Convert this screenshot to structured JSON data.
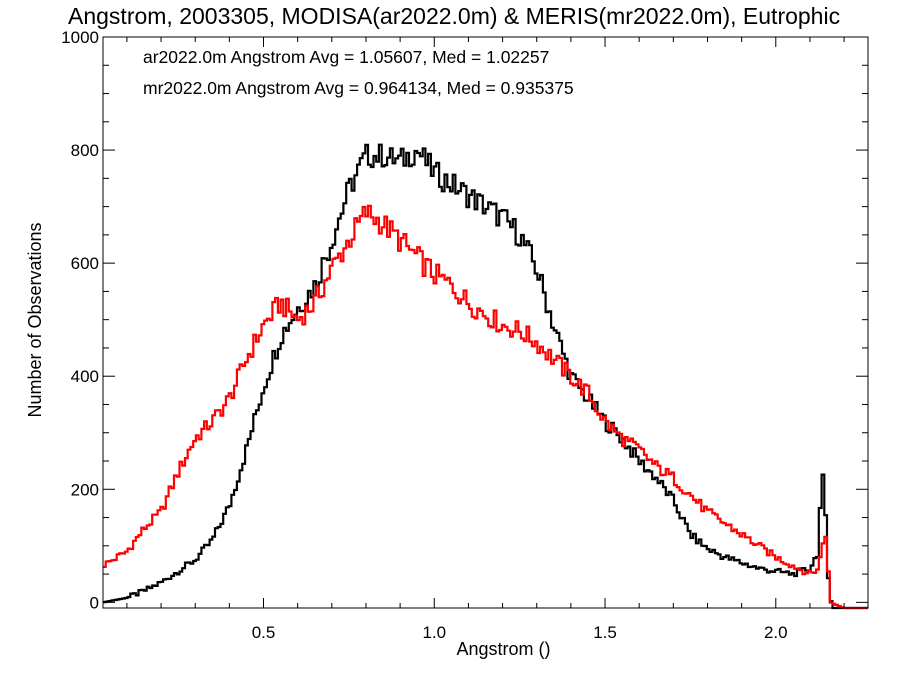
{
  "chart_data": {
    "type": "line",
    "title": "Angstrom, 2003305, MODISA(ar2022.0m) & MERIS(mr2022.0m), Eutrophic",
    "xlabel": "Angstrom ()",
    "ylabel": "Number of Observations",
    "xlim": [
      0.03,
      2.27
    ],
    "ylim": [
      -10,
      1000
    ],
    "xticks": [
      0.5,
      1.0,
      1.5,
      2.0
    ],
    "xtick_labels": [
      "0.5",
      "1.0",
      "1.5",
      "2.0"
    ],
    "yticks": [
      0,
      200,
      400,
      600,
      800,
      1000
    ],
    "ytick_labels": [
      "0",
      "200",
      "400",
      "600",
      "800",
      "1000"
    ],
    "grid": false,
    "legend_position": "top-left",
    "series": [
      {
        "name": "ar2022.0m",
        "color": "#000000",
        "annotation": "ar2022.0m Angstrom Avg = 1.05607, Med = 1.02257",
        "x": [
          0.03,
          0.1,
          0.15,
          0.2,
          0.25,
          0.3,
          0.35,
          0.4,
          0.45,
          0.5,
          0.55,
          0.6,
          0.65,
          0.7,
          0.75,
          0.8,
          0.85,
          0.9,
          0.95,
          1.0,
          1.05,
          1.1,
          1.15,
          1.2,
          1.25,
          1.3,
          1.35,
          1.4,
          1.45,
          1.5,
          1.55,
          1.6,
          1.65,
          1.7,
          1.75,
          1.8,
          1.85,
          1.9,
          1.95,
          2.0,
          2.05,
          2.1,
          2.125,
          2.135,
          2.145,
          2.155,
          2.165,
          2.2,
          2.27
        ],
        "y": [
          0,
          8,
          20,
          35,
          55,
          75,
          110,
          170,
          270,
          380,
          470,
          520,
          560,
          640,
          730,
          790,
          790,
          780,
          800,
          760,
          740,
          720,
          700,
          680,
          650,
          590,
          490,
          400,
          360,
          320,
          290,
          250,
          220,
          180,
          120,
          95,
          80,
          70,
          60,
          55,
          50,
          60,
          90,
          240,
          160,
          30,
          -10,
          -10,
          -10
        ]
      },
      {
        "name": "mr2022.0m",
        "color": "#ff0000",
        "annotation": "mr2022.0m Angstrom Avg = 0.964134, Med = 0.935375",
        "x": [
          0.03,
          0.1,
          0.15,
          0.2,
          0.25,
          0.3,
          0.35,
          0.4,
          0.45,
          0.5,
          0.55,
          0.6,
          0.65,
          0.7,
          0.75,
          0.8,
          0.85,
          0.9,
          0.95,
          1.0,
          1.05,
          1.1,
          1.15,
          1.2,
          1.25,
          1.3,
          1.35,
          1.4,
          1.45,
          1.5,
          1.55,
          1.6,
          1.65,
          1.7,
          1.75,
          1.8,
          1.85,
          1.9,
          1.95,
          2.0,
          2.05,
          2.1,
          2.125,
          2.145,
          2.16,
          2.2,
          2.27
        ],
        "y": [
          65,
          90,
          130,
          160,
          230,
          290,
          320,
          360,
          430,
          490,
          530,
          500,
          530,
          590,
          640,
          690,
          670,
          640,
          610,
          580,
          560,
          530,
          510,
          490,
          480,
          460,
          430,
          400,
          370,
          320,
          290,
          270,
          240,
          220,
          190,
          160,
          140,
          120,
          100,
          80,
          65,
          50,
          60,
          130,
          0,
          -10,
          -10
        ]
      }
    ]
  }
}
